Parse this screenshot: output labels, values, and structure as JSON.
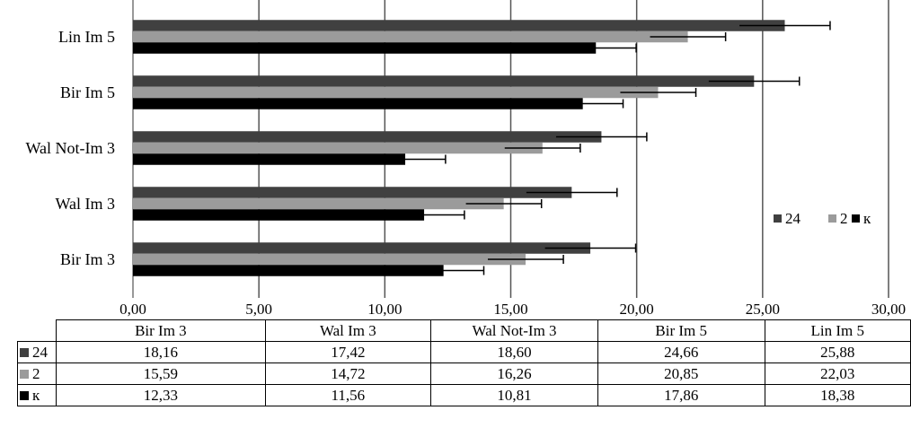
{
  "chart_data": {
    "type": "bar",
    "orientation": "horizontal",
    "categories": [
      "Bir Im 3",
      "Wal Im 3",
      "Wal Not-Im 3",
      "Bir Im 5",
      "Lin Im 5"
    ],
    "series": [
      {
        "name": "24",
        "color": "#404040",
        "values": [
          18.16,
          17.42,
          18.6,
          24.66,
          25.88
        ],
        "error": [
          1.8,
          1.8,
          1.8,
          1.8,
          1.8
        ]
      },
      {
        "name": "2",
        "color": "#9b9b9b",
        "values": [
          15.59,
          14.72,
          16.26,
          20.85,
          22.03
        ],
        "error": [
          1.5,
          1.5,
          1.5,
          1.5,
          1.5
        ]
      },
      {
        "name": "к",
        "color": "#000000",
        "values": [
          12.33,
          11.56,
          10.81,
          17.86,
          18.38
        ],
        "error": [
          1.6,
          1.6,
          1.6,
          1.6,
          1.6
        ]
      }
    ],
    "table_values": {
      "24": [
        "18,16",
        "17,42",
        "18,60",
        "24,66",
        "25,88"
      ],
      "2": [
        "15,59",
        "14,72",
        "16,26",
        "20,85",
        "22,03"
      ],
      "к": [
        "12,33",
        "11,56",
        "10,81",
        "17,86",
        "18,38"
      ]
    },
    "xlim": [
      0,
      30
    ],
    "x_ticks": [
      0,
      5,
      10,
      15,
      20,
      25,
      30
    ],
    "x_tick_labels": [
      "0,00",
      "5,00",
      "10,00",
      "15,00",
      "20,00",
      "25,00",
      "30,00"
    ],
    "legend_position": "right",
    "grid": true,
    "title": "",
    "xlabel": "",
    "ylabel": ""
  }
}
